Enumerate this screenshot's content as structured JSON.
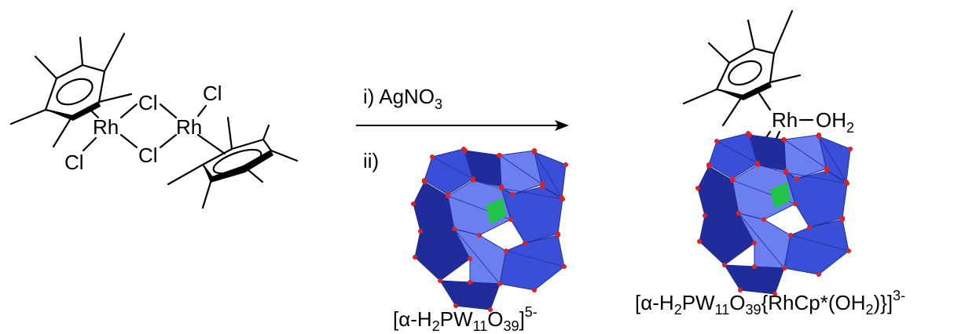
{
  "reaction": {
    "dimer": {
      "metal_left": "Rh",
      "metal_right": "Rh",
      "bridge_top": "Cl",
      "bridge_bottom": "Cl",
      "terminal_left": "Cl",
      "terminal_right": "Cl"
    },
    "conditions": {
      "step1_prefix": "i) AgNO",
      "step1_sub": "3",
      "step2": "ii)"
    },
    "reagent_label": {
      "open": "[α-H",
      "sub1": "2",
      "mid1": "PW",
      "sub2": "11",
      "mid2": "O",
      "sub3": "39",
      "close": "]",
      "charge": "5-"
    },
    "product": {
      "metal": "Rh",
      "ligand_prefix": "OH",
      "ligand_sub": "2"
    },
    "product_label": {
      "open": "[α-H",
      "sub1": "2",
      "mid1": "PW",
      "sub2": "11",
      "mid2": "O",
      "sub3": "39",
      "mid3": "{RhCp*(OH",
      "sub4": "2",
      "mid4": ")}",
      "close": "]",
      "charge": "3-"
    },
    "colors": {
      "polyhedra": "#3a4fd8",
      "polyhedra_dark": "#1f2c9a",
      "polyhedra_light": "#6c7ff0",
      "heteroatom": "#22c34a",
      "oxygen": "#e02020"
    }
  }
}
